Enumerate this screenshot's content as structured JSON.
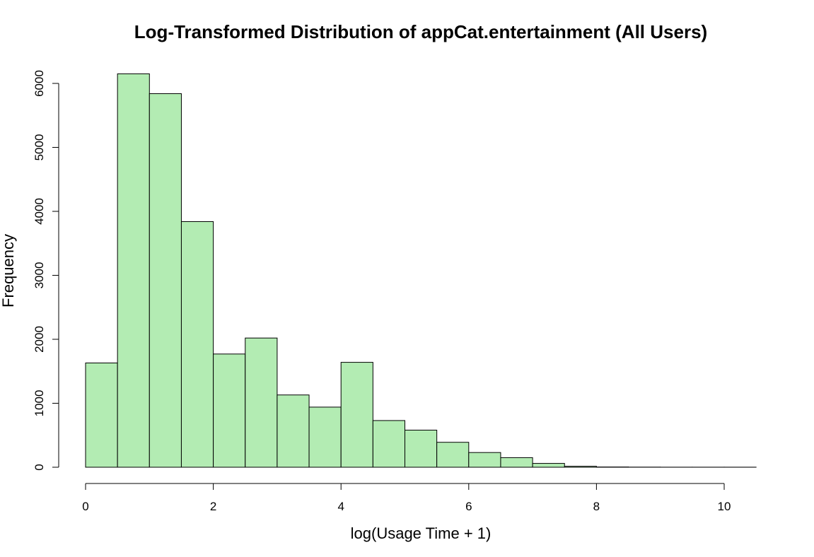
{
  "chart_data": {
    "type": "bar",
    "title": "Log-Transformed Distribution of appCat.entertainment (All Users)",
    "xlabel": "log(Usage Time + 1)",
    "ylabel": "Frequency",
    "bar_color": "#b3ecb3",
    "bin_width": 0.5,
    "bins": [
      {
        "x0": 0.0,
        "x1": 0.5,
        "value": 1630
      },
      {
        "x0": 0.5,
        "x1": 1.0,
        "value": 6150
      },
      {
        "x0": 1.0,
        "x1": 1.5,
        "value": 5840
      },
      {
        "x0": 1.5,
        "x1": 2.0,
        "value": 3840
      },
      {
        "x0": 2.0,
        "x1": 2.5,
        "value": 1770
      },
      {
        "x0": 2.5,
        "x1": 3.0,
        "value": 2020
      },
      {
        "x0": 3.0,
        "x1": 3.5,
        "value": 1130
      },
      {
        "x0": 3.5,
        "x1": 4.0,
        "value": 940
      },
      {
        "x0": 4.0,
        "x1": 4.5,
        "value": 1640
      },
      {
        "x0": 4.5,
        "x1": 5.0,
        "value": 730
      },
      {
        "x0": 5.0,
        "x1": 5.5,
        "value": 580
      },
      {
        "x0": 5.5,
        "x1": 6.0,
        "value": 390
      },
      {
        "x0": 6.0,
        "x1": 6.5,
        "value": 230
      },
      {
        "x0": 6.5,
        "x1": 7.0,
        "value": 150
      },
      {
        "x0": 7.0,
        "x1": 7.5,
        "value": 60
      },
      {
        "x0": 7.5,
        "x1": 8.0,
        "value": 15
      },
      {
        "x0": 8.0,
        "x1": 8.5,
        "value": 4
      },
      {
        "x0": 8.5,
        "x1": 9.0,
        "value": 2
      },
      {
        "x0": 9.0,
        "x1": 9.5,
        "value": 1
      },
      {
        "x0": 9.5,
        "x1": 10.0,
        "value": 1
      },
      {
        "x0": 10.0,
        "x1": 10.5,
        "value": 1
      }
    ],
    "x_ticks": [
      0,
      2,
      4,
      6,
      8,
      10
    ],
    "y_ticks": [
      0,
      1000,
      2000,
      3000,
      4000,
      5000,
      6000
    ],
    "xlim": [
      0,
      10.5
    ],
    "ylim": [
      0,
      6150
    ],
    "grid": false,
    "legend": "none"
  }
}
